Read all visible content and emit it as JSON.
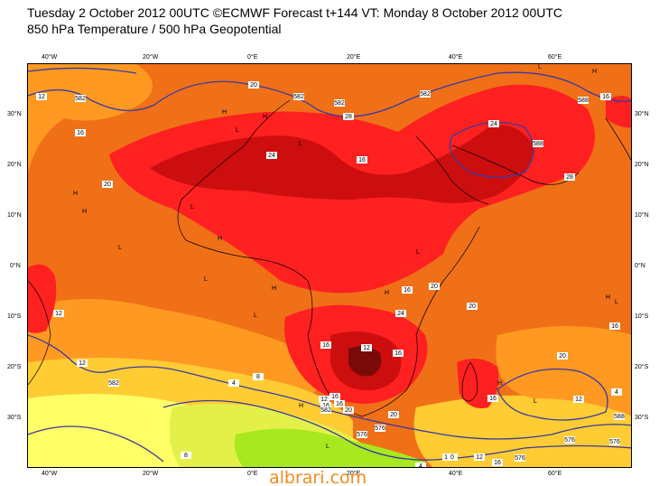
{
  "title": {
    "line1": "Tuesday 2 October 2012 00UTC ©ECMWF Forecast t+144 VT: Monday 8 October 2012 00UTC",
    "line2": "850 hPa Temperature / 500 hPa Geopotential"
  },
  "axes": {
    "lon_top": [
      "40°W",
      "20°W",
      "0°E",
      "20°E",
      "40°E",
      "60°E"
    ],
    "lon_bottom": [
      "40°W",
      "20°W",
      "0°E",
      "20°E",
      "40°E",
      "60°E"
    ],
    "lat_left": [
      "30°N",
      "20°N",
      "10°N",
      "0°N",
      "10°S",
      "20°S",
      "30°S"
    ],
    "lat_right": [
      "30°N",
      "20°N",
      "10°N",
      "0°N",
      "10°S",
      "20°S",
      "30°S"
    ]
  },
  "colors": {
    "temp_lt4": "#a8e81e",
    "temp_4_8": "#e4f04a",
    "temp_8_12": "#ffff66",
    "temp_12_16": "#ffcc33",
    "temp_16_20": "#ff9922",
    "temp_20_24": "#f07018",
    "temp_24_28": "#ff2020",
    "temp_28_32": "#cc0e0e",
    "temp_gt32": "#7a0a0a",
    "geopotential_line": "#3a3aa0",
    "coastline": "#000000",
    "watermark": "#f28a1c"
  },
  "contour_labels": {
    "temperature": [
      "12",
      "16",
      "20",
      "24",
      "28",
      "16",
      "20",
      "24",
      "28",
      "16",
      "12",
      "16",
      "20",
      "24",
      "16",
      "12",
      "16",
      "20",
      "4",
      "8",
      "12",
      "16",
      "20",
      "16",
      "12",
      "16",
      "20",
      "4",
      "16",
      "12",
      "16",
      "8",
      "4",
      "0",
      "16",
      "16",
      "20",
      "12"
    ],
    "geopotential": [
      "582",
      "582",
      "582",
      "582",
      "588",
      "588",
      "582",
      "582",
      "576",
      "576",
      "576",
      "576",
      "576",
      "588"
    ]
  },
  "pressure_markers": [
    "H",
    "L",
    "H",
    "L",
    "H",
    "L",
    "H",
    "L",
    "H",
    "L",
    "H",
    "L",
    "H",
    "L",
    "H",
    "L",
    "H",
    "L",
    "H",
    "L",
    "H",
    "L"
  ],
  "watermark": "albrari.com"
}
